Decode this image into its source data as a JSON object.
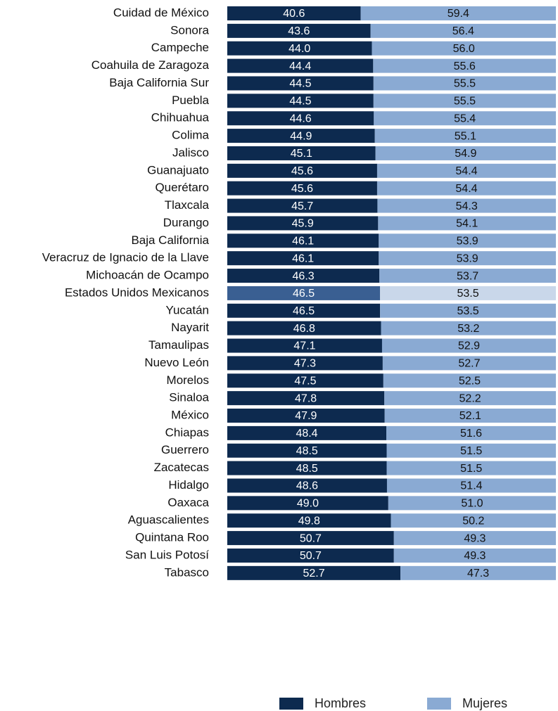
{
  "chart_data": {
    "type": "stacked-bar-horizontal",
    "categories": [
      "Cuidad de México",
      "Sonora",
      "Campeche",
      "Coahuila de Zaragoza",
      "Baja California Sur",
      "Puebla",
      "Chihuahua",
      "Colima",
      "Jalisco",
      "Guanajuato",
      "Querétaro",
      "Tlaxcala",
      "Durango",
      "Baja California",
      "Veracruz de Ignacio de la Llave",
      "Michoacán de Ocampo",
      "Estados Unidos Mexicanos",
      "Yucatán",
      "Nayarit",
      "Tamaulipas",
      "Nuevo León",
      "Morelos",
      "Sinaloa",
      "México",
      "Chiapas",
      "Guerrero",
      "Zacatecas",
      "Hidalgo",
      "Oaxaca",
      "Aguascalientes",
      "Quintana Roo",
      "San Luis Potosí",
      "Tabasco"
    ],
    "series": [
      {
        "name": "Hombres",
        "color": "#0d2a4f",
        "highlight_color": "#3a5f92",
        "label_color": "#ffffff",
        "values": [
          40.6,
          43.6,
          44.0,
          44.4,
          44.5,
          44.5,
          44.6,
          44.9,
          45.1,
          45.6,
          45.6,
          45.7,
          45.9,
          46.1,
          46.1,
          46.3,
          46.5,
          46.5,
          46.8,
          47.1,
          47.3,
          47.5,
          47.8,
          47.9,
          48.4,
          48.5,
          48.5,
          48.6,
          49.0,
          49.8,
          50.7,
          50.7,
          52.7
        ],
        "value_labels": [
          "40.6",
          "43.6",
          "44.0",
          "44.4",
          "44.5",
          "44.5",
          "44.6",
          "44.9",
          "45.1",
          "45.6",
          "45.6",
          "45.7",
          "45.9",
          "46.1",
          "46.1",
          "46.3",
          "46.5",
          "46.5",
          "46.8",
          "47.1",
          "47.3",
          "47.5",
          "47.8",
          "47.9",
          "48.4",
          "48.5",
          "48.5",
          "48.6",
          "49.0",
          "49.8",
          "50.7",
          "50.7",
          "52.7"
        ]
      },
      {
        "name": "Mujeres",
        "color": "#8aaad3",
        "highlight_color": "#c9d7ea",
        "label_color": "#111111",
        "values": [
          59.4,
          56.4,
          56.0,
          55.6,
          55.5,
          55.5,
          55.4,
          55.1,
          54.9,
          54.4,
          54.4,
          54.3,
          54.1,
          53.9,
          53.9,
          53.7,
          53.5,
          53.5,
          53.2,
          52.9,
          52.7,
          52.5,
          52.2,
          52.1,
          51.6,
          51.5,
          51.5,
          51.4,
          51.0,
          50.2,
          49.3,
          49.3,
          47.3
        ],
        "value_labels": [
          "59.4",
          "56.4",
          "56.0",
          "55.6",
          "55.5",
          "55.5",
          "55.4",
          "55.1",
          "54.9",
          "54.4",
          "54.4",
          "54.3",
          "54.1",
          "53.9",
          "53.9",
          "53.7",
          "53.5",
          "53.5",
          "53.2",
          "52.9",
          "52.7",
          "52.5",
          "52.2",
          "52.1",
          "51.6",
          "51.5",
          "51.5",
          "51.4",
          "51.0",
          "50.2",
          "49.3",
          "49.3",
          "47.3"
        ]
      }
    ],
    "highlight": "Estados Unidos Mexicanos",
    "xlim": [
      0,
      100
    ],
    "legend": "bottom"
  }
}
